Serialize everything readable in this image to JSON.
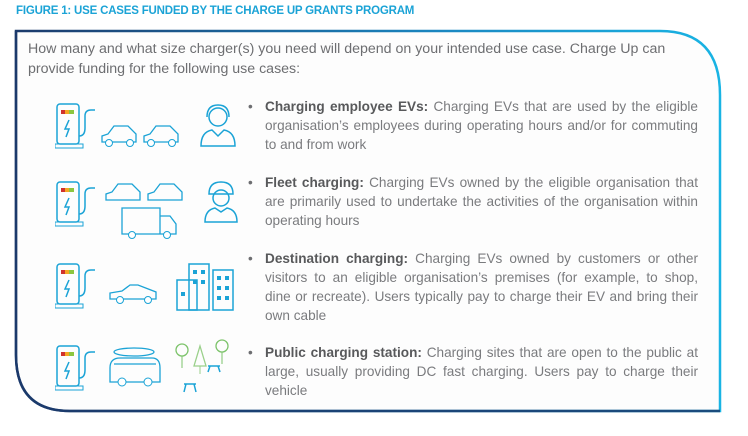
{
  "figure_title": "FIGURE 1:  USE CASES FUNDED BY THE CHARGE UP GRANTS PROGRAM",
  "intro": "How many and what size charger(s) you need will depend on your intended use case. Charge Up can provide funding for the following use cases:",
  "colors": {
    "accent": "#1ba3d6",
    "frame_dark": "#1b3a6b",
    "text": "#6d6e71"
  },
  "use_cases": [
    {
      "heading": "Charging employee EVs:",
      "text": " Charging EVs that are used by the eligible organisation’s employees during operating hours and/or for commuting to and from work",
      "icons": [
        "ev-charger-icon",
        "car-icon",
        "car-icon",
        "employee-headset-icon"
      ]
    },
    {
      "heading": "Fleet charging:",
      "text": " Charging EVs owned by the eligible organisation that are primarily used to undertake the activities of the organisation within operating hours",
      "icons": [
        "ev-charger-icon",
        "fleet-car-icon",
        "fleet-car-icon",
        "delivery-truck-icon",
        "worker-hardhat-icon"
      ]
    },
    {
      "heading": "Destination charging:",
      "text": " Charging EVs owned by customers or other visitors to an eligible organisation’s premises (for example, to shop, dine or recreate). Users typically pay to charge their EV and bring their own cable",
      "icons": [
        "ev-charger-icon",
        "convertible-car-icon",
        "buildings-icon"
      ]
    },
    {
      "heading": "Public charging station:",
      "text": " Charging sites that are open to the public at large, usually providing DC fast charging. Users pay to charge their vehicle",
      "icons": [
        "ev-charger-icon",
        "campervan-icon",
        "trees-picnic-icon"
      ]
    }
  ]
}
